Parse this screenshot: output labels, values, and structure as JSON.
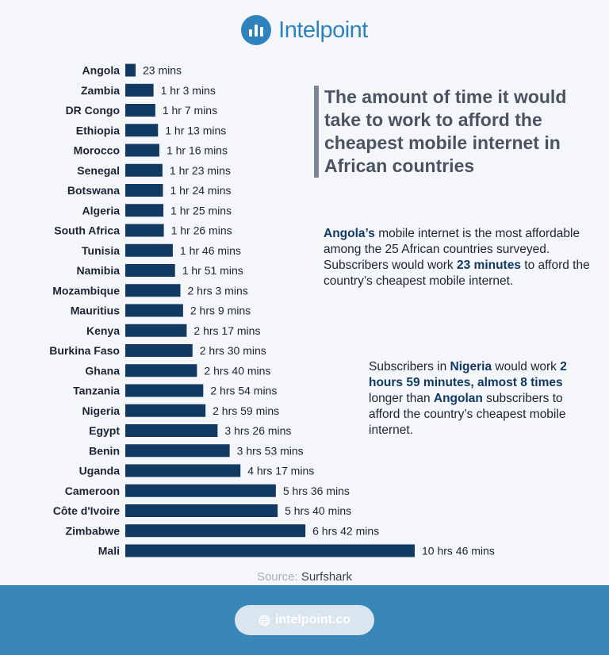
{
  "brand": {
    "name": "Intelpoint"
  },
  "title": "The amount of time it would take to work to afford the cheapest mobile internet in African countries",
  "note1": {
    "country": "Angola’s",
    "t1": " mobile internet is the most affordable among the 25 African countries surveyed. Subscribers would work ",
    "minutes": "23 minutes",
    "t2": " to afford the country’s cheapest mobile internet."
  },
  "note2": {
    "t1": "Subscribers in ",
    "country": "Nigeria",
    "t2": " would work ",
    "highlight": "2 hours 59 minutes, almost 8 times",
    "t3": " longer than ",
    "country2": "Angolan",
    "t4": " subscribers to afford the country’s cheapest mobile internet."
  },
  "source": {
    "label": "Source:",
    "value": "Surfshark"
  },
  "footer": {
    "url": "intelpoint.co",
    "icon": "globe-icon"
  },
  "colors": {
    "bar": "#113a63",
    "accent": "#2f83bd",
    "footer": "#3b86b9"
  },
  "chart_data": {
    "type": "bar",
    "orientation": "horizontal",
    "unit": "minutes",
    "categories": [
      "Angola",
      "Zambia",
      "DR Congo",
      "Ethiopia",
      "Morocco",
      "Senegal",
      "Botswana",
      "Algeria",
      "South Africa",
      "Tunisia",
      "Namibia",
      "Mozambique",
      "Mauritius",
      "Kenya",
      "Burkina Faso",
      "Ghana",
      "Tanzania",
      "Nigeria",
      "Egypt",
      "Benin",
      "Uganda",
      "Cameroon",
      "Côte d'Ivoire",
      "Zimbabwe",
      "Mali"
    ],
    "values": [
      23,
      63,
      67,
      73,
      76,
      83,
      84,
      85,
      86,
      106,
      111,
      123,
      129,
      137,
      150,
      160,
      174,
      179,
      206,
      233,
      257,
      336,
      340,
      402,
      646
    ],
    "labels": [
      "23 mins",
      "1 hr 3 mins",
      "1 hr 7 mins",
      "1 hr 13 mins",
      "1 hr 16 mins",
      "1 hr 23 mins",
      "1 hr 24 mins",
      "1 hr 25 mins",
      "1 hr 26 mins",
      "1 hr 46 mins",
      "1 hr 51 mins",
      "2 hrs 3 mins",
      "2 hrs 9 mins",
      "2 hrs 17 mins",
      "2 hrs 30 mins",
      "2 hrs 40 mins",
      "2 hrs 54 mins",
      "2 hrs 59 mins",
      "3 hrs 26 mins",
      "3 hrs 53 mins",
      "4 hrs 17 mins",
      "5 hrs 36 mins",
      "5 hrs 40 mins",
      "6 hrs 42 mins",
      "10 hrs 46 mins"
    ],
    "grid": false,
    "legend": "none"
  }
}
